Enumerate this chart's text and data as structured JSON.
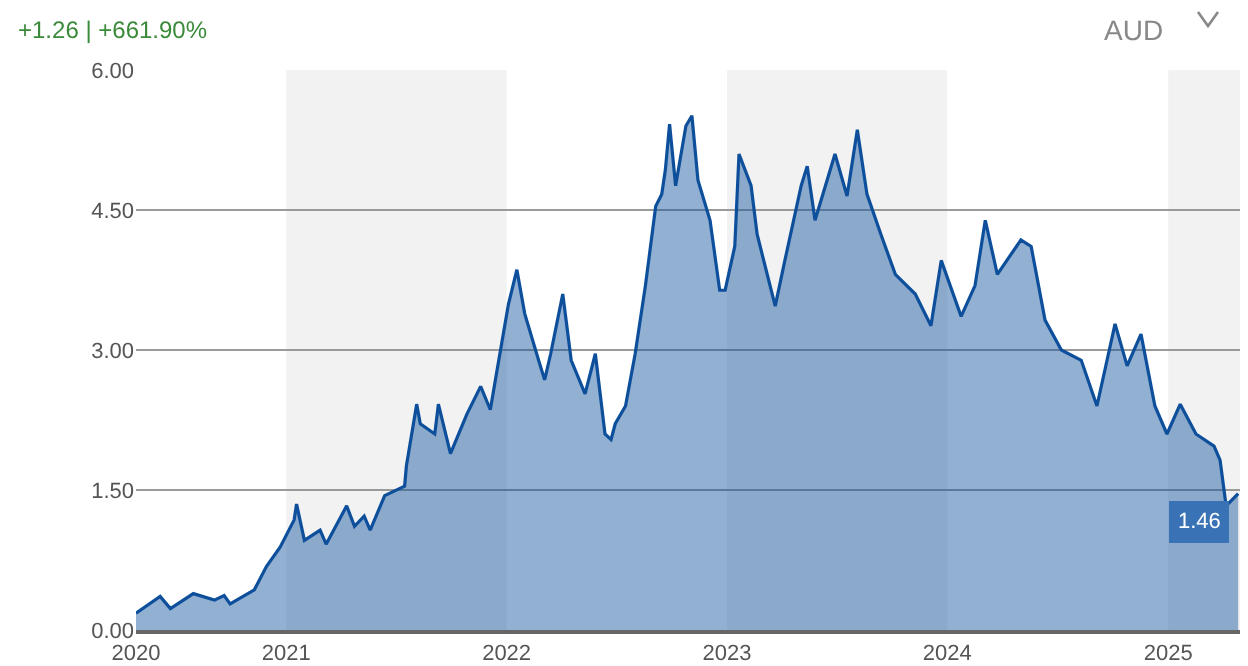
{
  "chart_data": {
    "type": "area",
    "x": [
      "2020-04-27",
      "2020-06-06",
      "2020-06-23",
      "2020-07-31",
      "2020-09-04",
      "2020-09-20",
      "2020-09-30",
      "2020-11-09",
      "2020-11-29",
      "2020-12-22",
      "2021-01-14",
      "2021-01-18",
      "2021-01-31",
      "2021-02-26",
      "2021-03-08",
      "2021-04-11",
      "2021-04-24",
      "2021-05-10",
      "2021-05-20",
      "2021-06-13",
      "2021-07-16",
      "2021-07-19",
      "2021-08-05",
      "2021-08-11",
      "2021-09-04",
      "2021-09-10",
      "2021-09-30",
      "2021-10-27",
      "2021-11-19",
      "2021-12-05",
      "2021-12-15",
      "2022-01-04",
      "2022-01-18",
      "2022-01-31",
      "2022-02-23",
      "2022-03-05",
      "2022-03-15",
      "2022-04-04",
      "2022-04-18",
      "2022-05-11",
      "2022-05-28",
      "2022-06-13",
      "2022-06-23",
      "2022-06-30",
      "2022-07-17",
      "2022-08-02",
      "2022-08-19",
      "2022-09-05",
      "2022-09-15",
      "2022-09-21",
      "2022-09-28",
      "2022-10-08",
      "2022-10-25",
      "2022-11-04",
      "2022-11-14",
      "2022-12-04",
      "2022-12-20",
      "2022-12-29",
      "2023-01-14",
      "2023-01-21",
      "2023-02-10",
      "2023-02-20",
      "2023-03-22",
      "2023-04-07",
      "2023-05-04",
      "2023-05-14",
      "2023-05-27",
      "2023-06-29",
      "2023-07-19",
      "2023-08-05",
      "2023-08-21",
      "2023-09-13",
      "2023-10-07",
      "2023-11-09",
      "2023-12-05",
      "2023-12-22",
      "2024-01-24",
      "2024-02-16",
      "2024-03-04",
      "2024-03-24",
      "2024-05-02",
      "2024-05-19",
      "2024-06-11",
      "2024-07-08",
      "2024-08-10",
      "2024-09-05",
      "2024-10-05",
      "2024-10-25",
      "2024-11-17",
      "2024-12-10",
      "2024-12-30",
      "2025-01-21",
      "2025-02-16",
      "2025-03-18",
      "2025-03-28",
      "2025-04-07",
      "2025-04-27"
    ],
    "series": [
      {
        "color": "#0e4f9c",
        "values": [
          0.18,
          0.36,
          0.23,
          0.39,
          0.32,
          0.37,
          0.28,
          0.43,
          0.68,
          0.89,
          1.18,
          1.35,
          0.96,
          1.07,
          0.92,
          1.33,
          1.11,
          1.22,
          1.07,
          1.44,
          1.54,
          1.76,
          2.42,
          2.21,
          2.1,
          2.42,
          1.89,
          2.31,
          2.61,
          2.36,
          2.74,
          3.49,
          3.86,
          3.39,
          2.89,
          2.68,
          2.96,
          3.6,
          2.89,
          2.53,
          2.96,
          2.1,
          2.04,
          2.21,
          2.4,
          2.96,
          3.69,
          4.54,
          4.67,
          4.93,
          5.42,
          4.76,
          5.4,
          5.51,
          4.82,
          4.39,
          3.64,
          3.64,
          4.11,
          5.1,
          4.76,
          4.24,
          3.47,
          3.96,
          4.76,
          4.97,
          4.39,
          5.1,
          4.65,
          5.36,
          4.67,
          4.24,
          3.81,
          3.6,
          3.26,
          3.96,
          3.36,
          3.69,
          4.39,
          3.81,
          4.18,
          4.11,
          3.32,
          3.0,
          2.89,
          2.4,
          3.28,
          2.83,
          3.17,
          2.4,
          2.1,
          2.42,
          2.1,
          1.97,
          1.82,
          1.33,
          1.46
        ]
      }
    ],
    "xlim": [
      "2020-04-27",
      "2025-04-30"
    ],
    "xticks": [
      {
        "value": "2020-04-27",
        "label": "2020"
      },
      {
        "value": "2021-01-01",
        "label": "2021"
      },
      {
        "value": "2022-01-01",
        "label": "2022"
      },
      {
        "value": "2023-01-01",
        "label": "2023"
      },
      {
        "value": "2024-01-01",
        "label": "2024"
      },
      {
        "value": "2025-01-01",
        "label": "2025"
      }
    ],
    "ylim": [
      0,
      6
    ],
    "yticks": [
      {
        "value": 0,
        "label": "0.00"
      },
      {
        "value": 1.5,
        "label": "1.50"
      },
      {
        "value": 3,
        "label": "3.00"
      },
      {
        "value": 4.5,
        "label": "4.50"
      },
      {
        "value": 6,
        "label": "6.00"
      }
    ],
    "grid": "y",
    "bands": [
      {
        "axis": "x",
        "from": "2021-01-01",
        "to": "2022-01-01",
        "color": "#f2f2f2"
      },
      {
        "axis": "x",
        "from": "2023-01-01",
        "to": "2024-01-01",
        "color": "#f2f2f2"
      },
      {
        "axis": "x",
        "from": "2025-01-01",
        "to": "2025-04-30",
        "color": "#f2f2f2"
      }
    ],
    "annotations": [
      "+1.26 | +661.90%",
      "AUD",
      {
        "text": "1.46",
        "x": "2025-04-27",
        "y": 1.46
      }
    ]
  }
}
